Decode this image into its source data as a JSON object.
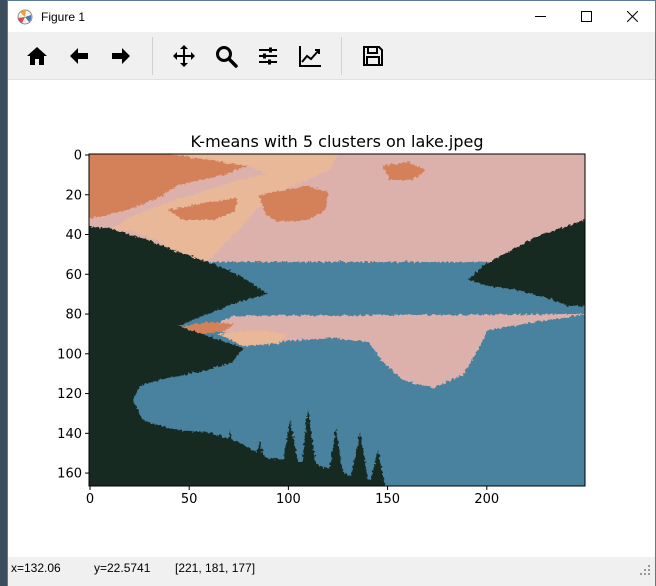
{
  "window": {
    "title": "Figure 1",
    "controls": {
      "minimize": "minimize-icon",
      "maximize": "maximize-icon",
      "close": "close-icon"
    }
  },
  "toolbar": {
    "buttons": [
      {
        "name": "home-button",
        "icon": "home-icon"
      },
      {
        "name": "back-button",
        "icon": "arrow-left-icon"
      },
      {
        "name": "forward-button",
        "icon": "arrow-right-icon"
      },
      {
        "name": "pan-button",
        "icon": "move-icon"
      },
      {
        "name": "zoom-button",
        "icon": "zoom-icon"
      },
      {
        "name": "subplots-button",
        "icon": "sliders-icon"
      },
      {
        "name": "edit-axis-button",
        "icon": "line-chart-icon"
      },
      {
        "name": "save-button",
        "icon": "floppy-disk-icon"
      }
    ]
  },
  "plot": {
    "title": "K-means with 5 clusters on lake.jpeg",
    "x_ticks": [
      "0",
      "50",
      "100",
      "150",
      "200"
    ],
    "y_ticks": [
      "0",
      "20",
      "40",
      "60",
      "80",
      "100",
      "120",
      "140",
      "160"
    ],
    "image_width": 250,
    "image_height": 167,
    "cluster_colors": {
      "orange": "#d4815a",
      "peach": "#e8b898",
      "pink": "#ddb1ab",
      "blue": "#4a829e",
      "dark": "#182c22"
    }
  },
  "status": {
    "x": "x=132.06",
    "y": "y=22.5741",
    "rgb": "[221, 181, 177]"
  }
}
